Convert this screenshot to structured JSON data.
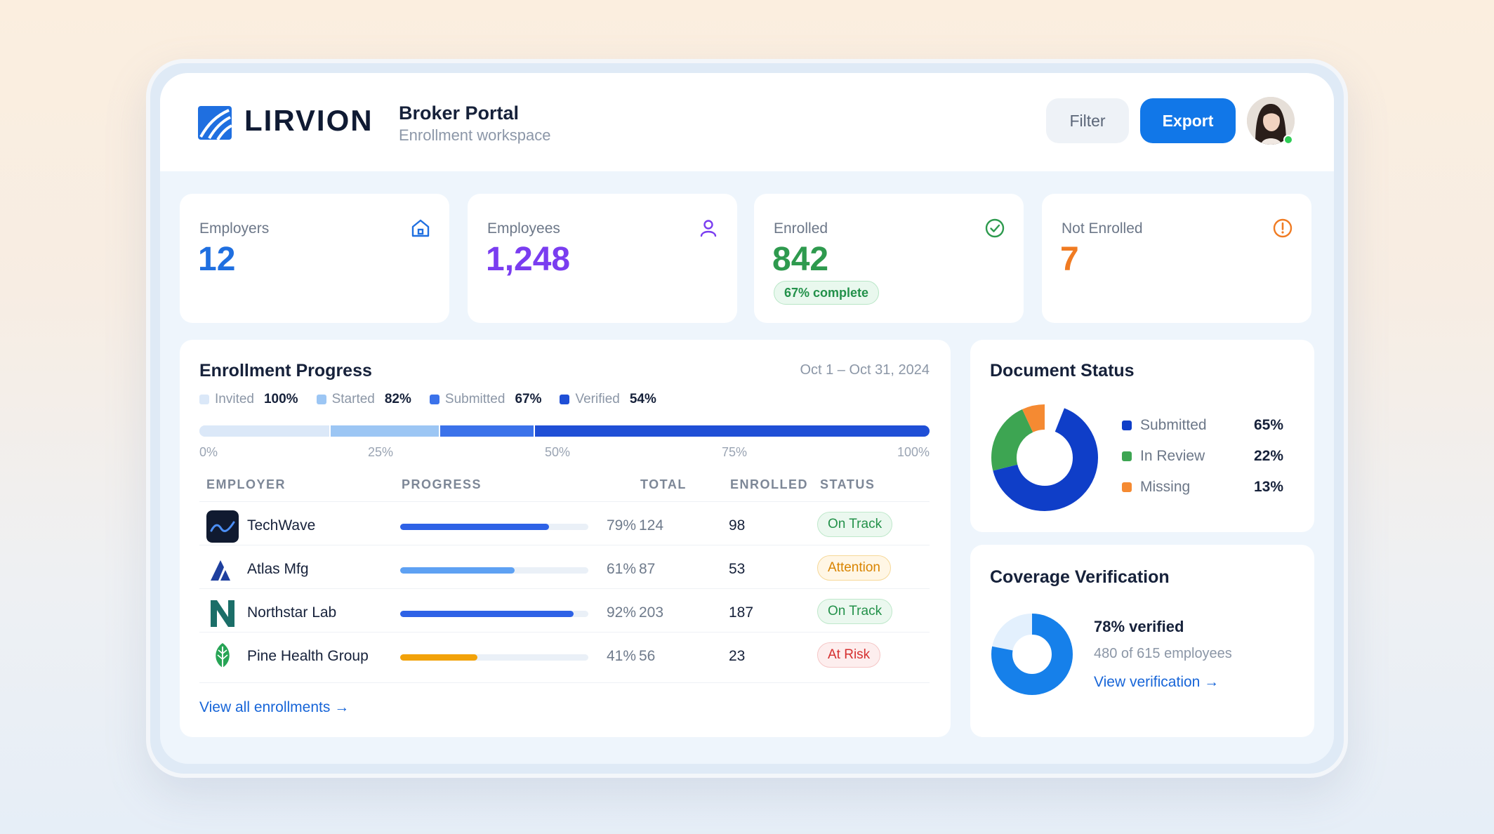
{
  "brand": {
    "name": "LIRVION"
  },
  "header": {
    "title": "Broker Portal",
    "subtitle": "Enrollment workspace",
    "filter_label": "Filter",
    "export_label": "Export"
  },
  "stats": [
    {
      "label": "Employers",
      "value": "12",
      "color": "#1f6fe0",
      "icon": "building-icon"
    },
    {
      "label": "Employees",
      "value": "1,248",
      "color": "#7a3df0",
      "icon": "user-icon"
    },
    {
      "label": "Enrolled",
      "value": "842",
      "color": "#2e9a4e",
      "icon": "check-circle-icon",
      "badge": "67% complete"
    },
    {
      "label": "Not Enrolled",
      "value": "7",
      "color": "#f07b22",
      "icon": "alert-circle-icon"
    }
  ],
  "progress": {
    "title": "Enrollment Progress",
    "date_range": "Oct 1 – Oct 31, 2024",
    "legend": [
      {
        "label": "Invited",
        "value": "100%",
        "color": "#dbe8f8"
      },
      {
        "label": "Started",
        "value": "82%",
        "color": "#9cc6f4"
      },
      {
        "label": "Submitted",
        "value": "67%",
        "color": "#3b72ea"
      },
      {
        "label": "Verified",
        "value": "54%",
        "color": "#1f4fd6"
      }
    ],
    "ticks": [
      "0%",
      "25%",
      "50%",
      "75%",
      "100%"
    ],
    "columns": [
      "EMPLOYER",
      "PROGRESS",
      "TOTAL",
      "ENROLLED",
      "STATUS"
    ],
    "rows": [
      {
        "employer": "TechWave",
        "progress_pct": "79%",
        "progress": 0.79,
        "total": "124",
        "enrolled": "98",
        "status": "On Track",
        "bar_color": "#2e62e6"
      },
      {
        "employer": "Atlas Mfg",
        "progress_pct": "61%",
        "progress": 0.61,
        "total": "87",
        "enrolled": "53",
        "status": "Attention",
        "bar_color": "#5ea1f3"
      },
      {
        "employer": "Northstar Lab",
        "progress_pct": "92%",
        "progress": 0.92,
        "total": "203",
        "enrolled": "187",
        "status": "On Track",
        "bar_color": "#2e62e6"
      },
      {
        "employer": "Pine Health Group",
        "progress_pct": "41%",
        "progress": 0.41,
        "total": "56",
        "enrolled": "23",
        "status": "At Risk",
        "bar_color": "#f2a20a"
      }
    ],
    "view_all": "View all enrollments →"
  },
  "documents": {
    "title": "Document Status",
    "items": [
      {
        "label": "Submitted",
        "value": "65%",
        "color": "#0f3ec8"
      },
      {
        "label": "In Review",
        "value": "22%",
        "color": "#3da552"
      },
      {
        "label": "Missing",
        "value": "13%",
        "color": "#f58a32"
      }
    ]
  },
  "coverage": {
    "title": "Coverage Verification",
    "headline": "78% verified",
    "detail": "480 of 615 employees",
    "link": "View verification →",
    "verified_fraction": 0.78
  }
}
